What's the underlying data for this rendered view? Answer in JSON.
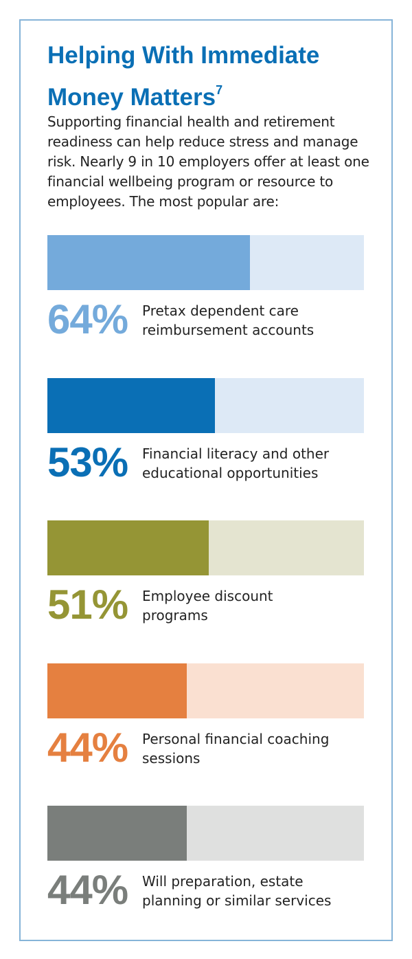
{
  "chart_data": {
    "type": "bar",
    "title": "Helping With Immediate Money Matters",
    "title_superscript": "7",
    "subtitle": "Supporting financial health and retirement readiness can help reduce stress and manage risk. Nearly 9 in 10 employers offer at least one financial wellbeing program or resource to employees. The most popular are:",
    "categories": [
      "Pretax dependent care reimbursement accounts",
      "Financial literacy and other educational opportunities",
      "Employee discount programs",
      "Personal financial coaching sessions",
      "Will preparation, estate planning or similar services"
    ],
    "values": [
      64,
      53,
      51,
      44,
      44
    ],
    "value_labels": [
      "64%",
      "53%",
      "51%",
      "44%",
      "44%"
    ],
    "colors": [
      "#74aadb",
      "#0a6fb5",
      "#959535",
      "#e58040",
      "#7a7e7b"
    ],
    "track_colors": [
      "#dde9f6",
      "#dde9f6",
      "#e4e4d0",
      "#fae0d1",
      "#dfe0df"
    ],
    "xlim": [
      0,
      100
    ]
  }
}
